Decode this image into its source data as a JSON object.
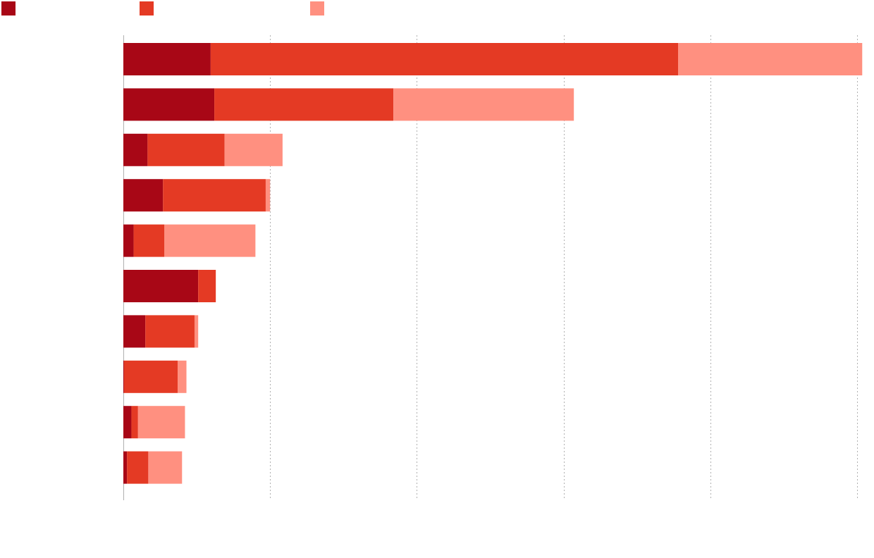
{
  "chart_data": {
    "type": "bar",
    "orientation": "horizontal",
    "stacked": true,
    "title": "",
    "xlabel": "",
    "ylabel": "",
    "xlim": [
      0,
      100
    ],
    "grid": true,
    "legend_position": "top-left",
    "categories": [
      "",
      "",
      "",
      "",
      "",
      "",
      "",
      "",
      "",
      ""
    ],
    "series": [
      {
        "color": "#a80716",
        "values": [
          11.9,
          12.4,
          3.3,
          5.4,
          1.4,
          10.2,
          3.0,
          0.1,
          1.1,
          0.5
        ]
      },
      {
        "color": "#e43a24",
        "values": [
          63.7,
          24.4,
          10.5,
          14.0,
          4.2,
          2.4,
          6.7,
          7.3,
          0.9,
          2.9
        ]
      },
      {
        "color": "#ff9080",
        "values": [
          25.1,
          24.6,
          7.9,
          0.6,
          12.4,
          0.0,
          0.5,
          1.2,
          6.4,
          4.6
        ]
      }
    ]
  }
}
